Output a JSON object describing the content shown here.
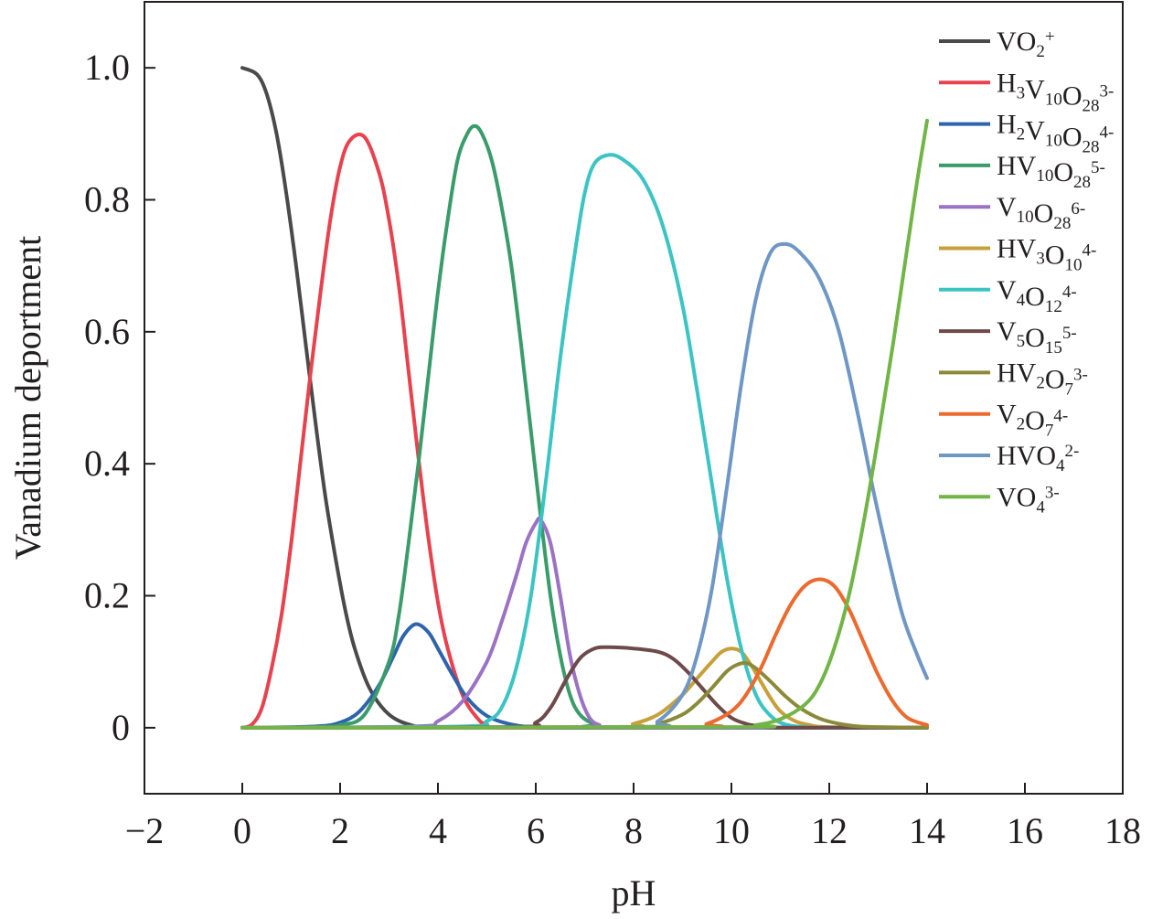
{
  "chart_data": {
    "type": "line",
    "xlabel": "pH",
    "ylabel": "Vanadium deportment",
    "xlim": [
      -2,
      18
    ],
    "ylim": [
      -0.1,
      1.1
    ],
    "xticks": [
      -2,
      0,
      2,
      4,
      6,
      8,
      10,
      12,
      14,
      16,
      18
    ],
    "xtick_labels": [
      "−2",
      "0",
      "2",
      "4",
      "6",
      "8",
      "10",
      "12",
      "14",
      "16",
      "18"
    ],
    "yticks": [
      0,
      0.2,
      0.4,
      0.6,
      0.8,
      1.0
    ],
    "ytick_labels": [
      "0",
      "0.2",
      "0.4",
      "0.6",
      "0.8",
      "1.0"
    ],
    "grid": false,
    "legend_position": "top-right",
    "series": [
      {
        "name": "VO2+",
        "label_parts": [
          [
            "VO",
            ""
          ],
          [
            "2",
            "sub"
          ],
          [
            "+",
            "sup"
          ]
        ],
        "color": "#4a4a4a",
        "x": [
          0,
          0.3,
          0.5,
          0.7,
          0.9,
          1.1,
          1.3,
          1.5,
          1.7,
          1.9,
          2.1,
          2.3,
          2.6,
          3.0,
          3.5,
          4.0,
          14
        ],
        "y": [
          1.0,
          0.99,
          0.96,
          0.9,
          0.81,
          0.7,
          0.58,
          0.46,
          0.35,
          0.26,
          0.18,
          0.12,
          0.06,
          0.02,
          0.003,
          0,
          0
        ]
      },
      {
        "name": "H3V10O28 3-",
        "label_parts": [
          [
            "H",
            ""
          ],
          [
            "3",
            "sub"
          ],
          [
            "V",
            ""
          ],
          [
            "10",
            "sub"
          ],
          [
            "O",
            ""
          ],
          [
            "28",
            "sub"
          ],
          [
            "3-",
            "sup"
          ]
        ],
        "color": "#e8424e",
        "x": [
          0,
          0.2,
          0.4,
          0.6,
          0.8,
          1.0,
          1.2,
          1.4,
          1.6,
          1.8,
          2.0,
          2.2,
          2.5,
          2.8,
          3.0,
          3.2,
          3.4,
          3.6,
          3.8,
          4.0,
          4.2,
          4.5,
          4.8,
          5.0,
          5.5,
          14
        ],
        "y": [
          0,
          0.005,
          0.03,
          0.09,
          0.17,
          0.28,
          0.41,
          0.54,
          0.66,
          0.77,
          0.85,
          0.89,
          0.895,
          0.84,
          0.77,
          0.67,
          0.54,
          0.41,
          0.29,
          0.19,
          0.12,
          0.05,
          0.015,
          0.005,
          0,
          0
        ]
      },
      {
        "name": "H2V10O28 4-",
        "label_parts": [
          [
            "H",
            ""
          ],
          [
            "2",
            "sub"
          ],
          [
            "V",
            ""
          ],
          [
            "10",
            "sub"
          ],
          [
            "O",
            ""
          ],
          [
            "28",
            "sub"
          ],
          [
            "4-",
            "sup"
          ]
        ],
        "color": "#2e64ad",
        "x": [
          0,
          1.5,
          2.0,
          2.4,
          2.8,
          3.1,
          3.3,
          3.55,
          3.8,
          4.0,
          4.3,
          4.6,
          5.0,
          5.5,
          6.0,
          7.0,
          14
        ],
        "y": [
          0,
          0.002,
          0.008,
          0.025,
          0.065,
          0.11,
          0.14,
          0.157,
          0.145,
          0.12,
          0.08,
          0.045,
          0.018,
          0.005,
          0.001,
          0,
          0
        ]
      },
      {
        "name": "HV10O28 5-",
        "label_parts": [
          [
            "HV",
            ""
          ],
          [
            "10",
            "sub"
          ],
          [
            "O",
            ""
          ],
          [
            "28",
            "sub"
          ],
          [
            "5-",
            "sup"
          ]
        ],
        "color": "#3a9c6a",
        "x": [
          0,
          1.5,
          2.0,
          2.5,
          3.0,
          3.2,
          3.4,
          3.6,
          3.8,
          4.0,
          4.2,
          4.4,
          4.6,
          4.75,
          4.9,
          5.1,
          5.3,
          5.5,
          5.7,
          5.9,
          6.1,
          6.3,
          6.5,
          6.7,
          6.9,
          7.2,
          7.5,
          14
        ],
        "y": [
          0,
          0.001,
          0.004,
          0.02,
          0.1,
          0.17,
          0.28,
          0.4,
          0.53,
          0.66,
          0.77,
          0.86,
          0.9,
          0.912,
          0.9,
          0.86,
          0.79,
          0.7,
          0.58,
          0.45,
          0.32,
          0.2,
          0.11,
          0.05,
          0.02,
          0.005,
          0,
          0
        ]
      },
      {
        "name": "V10O28 6-",
        "label_parts": [
          [
            "V",
            ""
          ],
          [
            "10",
            "sub"
          ],
          [
            "O",
            ""
          ],
          [
            "28",
            "sub"
          ],
          [
            "6-",
            "sup"
          ]
        ],
        "color": "#9b72c4",
        "x": [
          0,
          3.5,
          4.0,
          4.5,
          5.0,
          5.3,
          5.6,
          5.8,
          6.0,
          6.1,
          6.3,
          6.5,
          6.7,
          6.9,
          7.1,
          7.3,
          7.6,
          14
        ],
        "y": [
          0,
          0.002,
          0.01,
          0.04,
          0.1,
          0.16,
          0.23,
          0.28,
          0.31,
          0.315,
          0.28,
          0.2,
          0.11,
          0.05,
          0.015,
          0.004,
          0,
          0
        ]
      },
      {
        "name": "HV3O10 4-",
        "label_parts": [
          [
            "HV",
            ""
          ],
          [
            "3",
            "sub"
          ],
          [
            "O",
            ""
          ],
          [
            "10",
            "sub"
          ],
          [
            "4-",
            "sup"
          ]
        ],
        "color": "#c7a03a",
        "x": [
          0,
          7.5,
          8.0,
          8.5,
          9.0,
          9.3,
          9.6,
          9.8,
          10.0,
          10.2,
          10.4,
          10.6,
          10.8,
          11.0,
          11.3,
          11.6,
          12.0,
          14
        ],
        "y": [
          0,
          0.001,
          0.006,
          0.02,
          0.05,
          0.075,
          0.1,
          0.115,
          0.12,
          0.115,
          0.095,
          0.07,
          0.045,
          0.025,
          0.01,
          0.004,
          0.001,
          0
        ]
      },
      {
        "name": "V4O12 4-",
        "label_parts": [
          [
            "V",
            ""
          ],
          [
            "4",
            "sub"
          ],
          [
            "O",
            ""
          ],
          [
            "12",
            "sub"
          ],
          [
            "4-",
            "sup"
          ]
        ],
        "color": "#3cc4c4",
        "x": [
          0,
          4.5,
          5.0,
          5.3,
          5.6,
          5.9,
          6.2,
          6.5,
          6.8,
          7.0,
          7.2,
          7.5,
          7.8,
          8.2,
          8.6,
          9.0,
          9.3,
          9.6,
          9.9,
          10.2,
          10.5,
          10.8,
          11.1,
          11.5,
          12.0,
          14
        ],
        "y": [
          0,
          0.002,
          0.01,
          0.03,
          0.09,
          0.2,
          0.37,
          0.56,
          0.72,
          0.81,
          0.855,
          0.868,
          0.86,
          0.83,
          0.76,
          0.64,
          0.51,
          0.37,
          0.23,
          0.12,
          0.05,
          0.018,
          0.005,
          0.001,
          0,
          0
        ]
      },
      {
        "name": "V5O15 5-",
        "label_parts": [
          [
            "V",
            ""
          ],
          [
            "5",
            "sub"
          ],
          [
            "O",
            ""
          ],
          [
            "15",
            "sub"
          ],
          [
            "5-",
            "sup"
          ]
        ],
        "color": "#6e4a4a",
        "x": [
          0,
          5.5,
          6.0,
          6.3,
          6.6,
          6.9,
          7.2,
          7.5,
          8.0,
          8.5,
          8.8,
          9.1,
          9.4,
          9.7,
          10.0,
          10.3,
          10.6,
          11.0,
          12.0,
          14
        ],
        "y": [
          0,
          0.001,
          0.008,
          0.03,
          0.07,
          0.105,
          0.12,
          0.122,
          0.12,
          0.115,
          0.105,
          0.085,
          0.06,
          0.035,
          0.015,
          0.006,
          0.002,
          0,
          0,
          0
        ]
      },
      {
        "name": "HV2O7 3-",
        "label_parts": [
          [
            "HV",
            ""
          ],
          [
            "2",
            "sub"
          ],
          [
            "O",
            ""
          ],
          [
            "7",
            "sub"
          ],
          [
            "3-",
            "sup"
          ]
        ],
        "color": "#8b8a3a",
        "x": [
          0,
          8.0,
          8.5,
          9.0,
          9.3,
          9.6,
          9.9,
          10.1,
          10.3,
          10.5,
          10.8,
          11.1,
          11.4,
          11.8,
          12.2,
          12.6,
          13.0,
          14
        ],
        "y": [
          0,
          0.001,
          0.006,
          0.02,
          0.037,
          0.06,
          0.085,
          0.095,
          0.098,
          0.09,
          0.07,
          0.048,
          0.03,
          0.014,
          0.006,
          0.002,
          0.001,
          0
        ]
      },
      {
        "name": "V2O7 4-",
        "label_parts": [
          [
            "V",
            ""
          ],
          [
            "2",
            "sub"
          ],
          [
            "O",
            ""
          ],
          [
            "7",
            "sub"
          ],
          [
            "4-",
            "sup"
          ]
        ],
        "color": "#ec6a2e",
        "x": [
          0,
          9.0,
          9.5,
          10.0,
          10.3,
          10.6,
          10.9,
          11.2,
          11.5,
          11.8,
          12.1,
          12.4,
          12.7,
          13.0,
          13.3,
          13.6,
          14.0
        ],
        "y": [
          0,
          0.001,
          0.006,
          0.025,
          0.05,
          0.09,
          0.14,
          0.185,
          0.215,
          0.225,
          0.215,
          0.18,
          0.13,
          0.08,
          0.04,
          0.015,
          0.004
        ]
      },
      {
        "name": "HVO4 2-",
        "label_parts": [
          [
            "HVO",
            ""
          ],
          [
            "4",
            "sub"
          ],
          [
            "2-",
            "sup"
          ]
        ],
        "color": "#6f97c6",
        "x": [
          0,
          8.0,
          8.5,
          9.0,
          9.3,
          9.6,
          9.9,
          10.2,
          10.5,
          10.8,
          11.1,
          11.4,
          11.8,
          12.2,
          12.6,
          12.9,
          13.2,
          13.5,
          13.8,
          14.0
        ],
        "y": [
          0,
          0.001,
          0.01,
          0.05,
          0.11,
          0.21,
          0.36,
          0.52,
          0.65,
          0.72,
          0.733,
          0.72,
          0.68,
          0.6,
          0.47,
          0.36,
          0.26,
          0.17,
          0.11,
          0.075
        ]
      },
      {
        "name": "VO4 3-",
        "label_parts": [
          [
            "VO",
            ""
          ],
          [
            "4",
            "sub"
          ],
          [
            "3-",
            "sup"
          ]
        ],
        "color": "#72b547",
        "x": [
          0,
          10.0,
          10.5,
          11.0,
          11.5,
          11.8,
          12.1,
          12.4,
          12.7,
          13.0,
          13.3,
          13.6,
          13.8,
          14.0
        ],
        "y": [
          0,
          0.001,
          0.004,
          0.013,
          0.035,
          0.065,
          0.12,
          0.2,
          0.31,
          0.44,
          0.58,
          0.73,
          0.83,
          0.92
        ]
      }
    ]
  }
}
